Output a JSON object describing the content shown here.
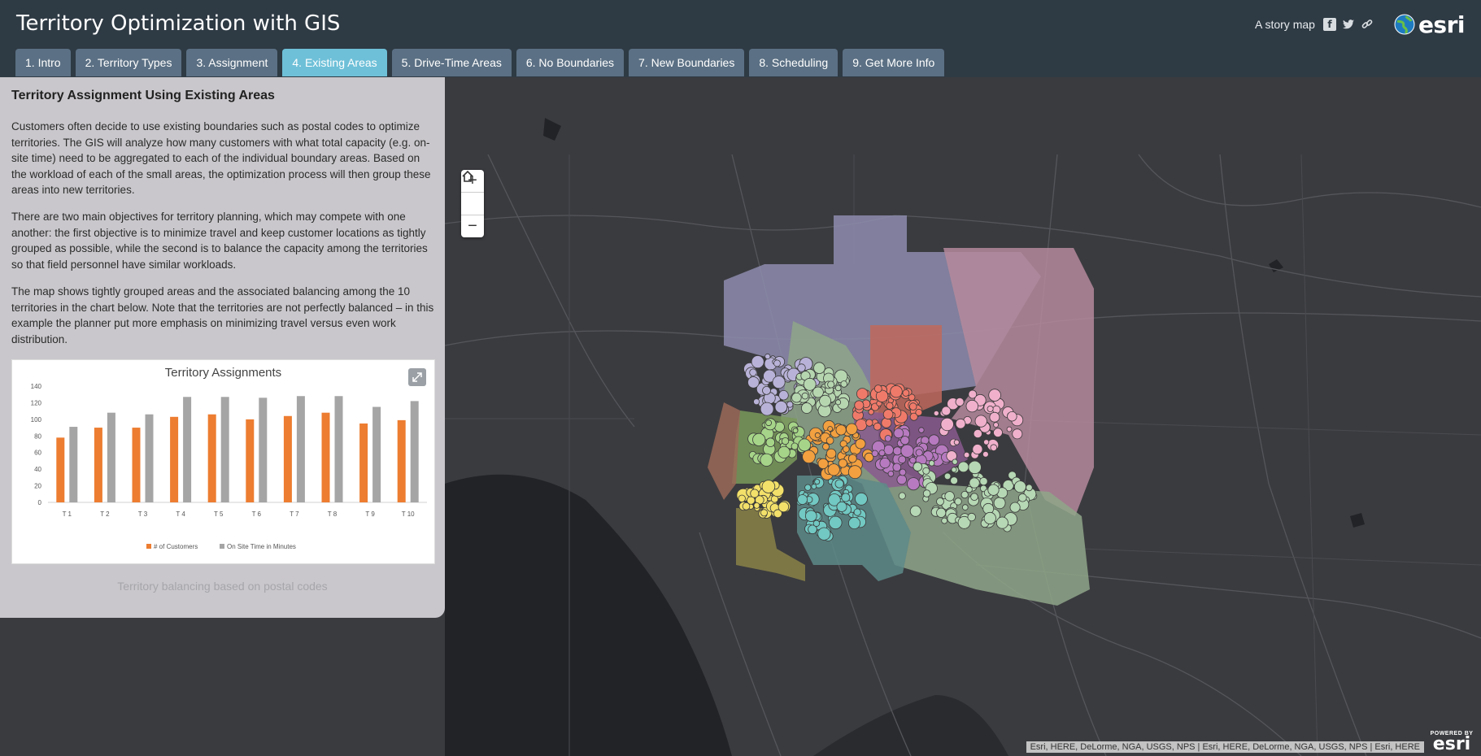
{
  "app": {
    "title": "Territory Optimization with GIS"
  },
  "header": {
    "storymap_label": "A story map",
    "logo_text": "esri"
  },
  "tabs": [
    {
      "label": "1. Intro",
      "active": false
    },
    {
      "label": "2. Territory Types",
      "active": false
    },
    {
      "label": "3. Assignment",
      "active": false
    },
    {
      "label": "4. Existing Areas",
      "active": true
    },
    {
      "label": "5. Drive-Time Areas",
      "active": false
    },
    {
      "label": "6. No Boundaries",
      "active": false
    },
    {
      "label": "7. New Boundaries",
      "active": false
    },
    {
      "label": "8. Scheduling",
      "active": false
    },
    {
      "label": "9. Get More Info",
      "active": false
    }
  ],
  "panel": {
    "title": "Territory Assignment Using Existing Areas",
    "paragraphs": [
      "Customers often decide to use existing boundaries such as postal codes to optimize territories. The GIS will analyze how many customers with what total capacity (e.g. on-site time) need to be aggregated to each of the individual boundary areas. Based on the workload of each of the small areas, the optimization process will then group these areas into new territories.",
      "There are two main objectives for territory planning, which may compete with one another: the first objective is to minimize travel and keep customer locations as tightly grouped as possible, while the second is to balance the capacity among the territories so that field personnel have similar workloads.",
      "The map shows tightly grouped areas and the associated balancing among the 10 territories in the chart below. Note that the territories are not perfectly balanced – in this example the planner put more emphasis on minimizing travel versus even work distribution."
    ],
    "caption": "Territory balancing based on postal codes"
  },
  "chart_data": {
    "type": "bar",
    "title": "Territory Assignments",
    "categories": [
      "T 1",
      "T 2",
      "T 3",
      "T 4",
      "T 5",
      "T 6",
      "T 7",
      "T 8",
      "T 9",
      "T 10"
    ],
    "series": [
      {
        "name": "# of Customers",
        "color": "#ed7d31",
        "values": [
          78,
          90,
          90,
          103,
          106,
          100,
          104,
          108,
          95,
          99
        ]
      },
      {
        "name": "On Site Time in Minutes",
        "color": "#a5a5a5",
        "values": [
          91,
          108,
          106,
          127,
          127,
          126,
          128,
          128,
          115,
          122
        ]
      }
    ],
    "ylim": [
      0,
      140
    ],
    "yticks": [
      0,
      20,
      40,
      60,
      80,
      100,
      120,
      140
    ],
    "grid": false,
    "legend": "bottom"
  },
  "map": {
    "zoom_in": "+",
    "zoom_out": "−",
    "attribution": "Esri, HERE, DeLorme, NGA, USGS, NPS | Esri, HERE, DeLorme, NGA, USGS, NPS | Esri, HERE",
    "powered_by": "POWERED BY",
    "powered_logo": "esri",
    "territory_colors": [
      "#8e8cae",
      "#b58a9c",
      "#8fa68a",
      "#c0685c",
      "#8a5a8e",
      "#5e8a88",
      "#8a8248",
      "#7a9a5a",
      "#9a6a58"
    ],
    "dot_colors": [
      "#b9b2d8",
      "#b6d6b0",
      "#f07a6a",
      "#f2a040",
      "#b77ac0",
      "#f0b0cc",
      "#a6d488",
      "#f2e06a",
      "#72c8c2",
      "#b6d8b4"
    ]
  }
}
